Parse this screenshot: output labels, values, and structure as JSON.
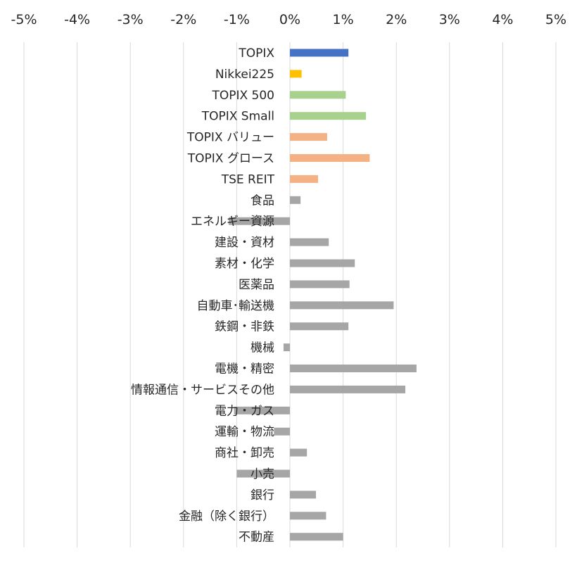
{
  "chart_data": {
    "type": "bar",
    "orientation": "horizontal",
    "title": "",
    "xlabel": "",
    "ylabel": "",
    "xlim": [
      -5,
      5
    ],
    "x_ticks": [
      "-5%",
      "-4%",
      "-3%",
      "-2%",
      "-1%",
      "0%",
      "1%",
      "2%",
      "3%",
      "4%",
      "5%"
    ],
    "x_axis_position": "top",
    "grid": "vertical",
    "legend": "none",
    "unit": "%",
    "colors": {
      "index": "#4472C4",
      "nikkei": "#FFC000",
      "size": "#A9D18E",
      "style": "#F4B183",
      "sector": "#A6A6A6",
      "grid": "#D9D9D9"
    },
    "categories": [
      "TOPIX",
      "Nikkei225",
      "TOPIX 500",
      "TOPIX Small",
      "TOPIX バリュー",
      "TOPIX グロース",
      "TSE REIT",
      "食品",
      "エネルギー資源",
      "建設・資材",
      "素材・化学",
      "医薬品",
      "自動車･輸送機",
      "鉄鋼・非鉄",
      "機械",
      "電機・精密",
      "情報通信・サービスその他",
      "電力・ガス",
      "運輸・物流",
      "商社・卸売",
      "小売",
      "銀行",
      "金融（除く銀行）",
      "不動産"
    ],
    "values": [
      1.1,
      0.22,
      1.05,
      1.43,
      0.7,
      1.5,
      0.53,
      0.2,
      -1.15,
      0.73,
      1.22,
      1.12,
      1.95,
      1.1,
      -0.12,
      2.38,
      2.17,
      -1.05,
      -0.3,
      0.32,
      -1.0,
      0.49,
      0.68,
      1.0
    ],
    "bar_colors": [
      "index",
      "nikkei",
      "size",
      "size",
      "style",
      "style",
      "style",
      "sector",
      "sector",
      "sector",
      "sector",
      "sector",
      "sector",
      "sector",
      "sector",
      "sector",
      "sector",
      "sector",
      "sector",
      "sector",
      "sector",
      "sector",
      "sector",
      "sector"
    ]
  }
}
